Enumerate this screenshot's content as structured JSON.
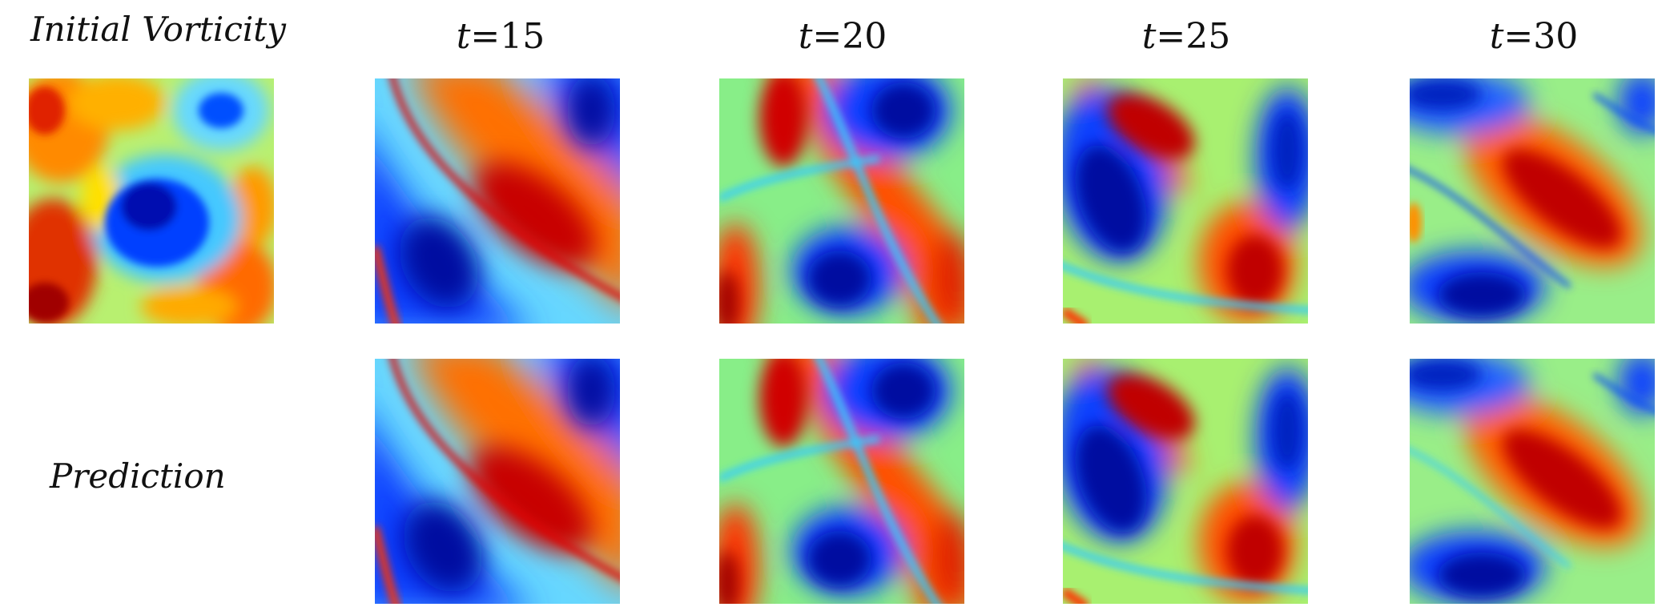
{
  "labels": {
    "initial": "Initial Vorticity",
    "prediction": "Prediction"
  },
  "time_labels": [
    {
      "var": "t",
      "value": "=15"
    },
    {
      "var": "t",
      "value": "=20"
    },
    {
      "var": "t",
      "value": "=25"
    },
    {
      "var": "t",
      "value": "=30"
    }
  ],
  "colormap": [
    "#00008f",
    "#0033ff",
    "#33ccff",
    "#99ff66",
    "#ffff00",
    "#ff6600",
    "#cc0000",
    "#800000"
  ]
}
